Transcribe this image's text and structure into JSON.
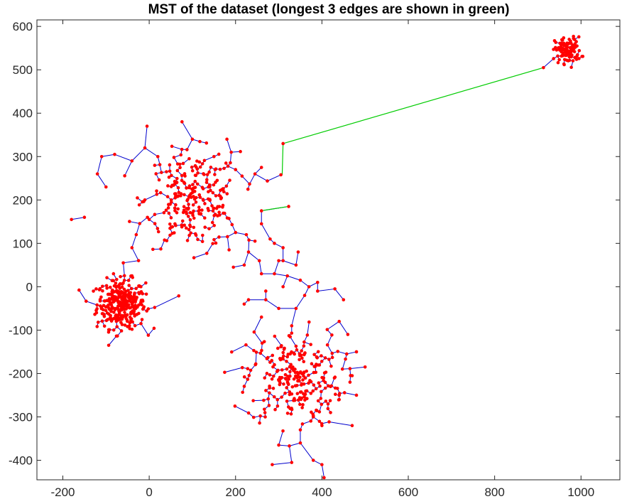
{
  "chart_data": {
    "type": "scatter",
    "title": "MST of the dataset (longest 3 edges are shown in green)",
    "xlabel": "",
    "ylabel": "",
    "xlim": [
      -260,
      1090
    ],
    "ylim": [
      -445,
      615
    ],
    "xticks": [
      -200,
      0,
      200,
      400,
      600,
      800,
      1000
    ],
    "yticks": [
      -400,
      -300,
      -200,
      -100,
      0,
      100,
      200,
      300,
      400,
      500,
      600
    ],
    "grid": false,
    "legend": "none",
    "colors": {
      "points": "#ff0000",
      "mst_edges": "#0000cc",
      "longest_edges": "#00cc00",
      "axes": "#262626"
    },
    "clusters": [
      {
        "center": [
          -65,
          -40
        ],
        "spread": 28,
        "count": 330
      },
      {
        "center": [
          100,
          200
        ],
        "spread": 55,
        "count": 260
      },
      {
        "center": [
          335,
          -210
        ],
        "spread": 55,
        "count": 260
      },
      {
        "center": [
          970,
          545
        ],
        "spread": 15,
        "count": 110
      }
    ],
    "bridge_points": [
      [
        -40,
        90
      ],
      [
        -60,
        55
      ],
      [
        -30,
        120
      ],
      [
        0,
        155
      ],
      [
        -10,
        200
      ],
      [
        -100,
        230
      ],
      [
        -150,
        160
      ],
      [
        -180,
        155
      ],
      [
        -120,
        260
      ],
      [
        -110,
        300
      ],
      [
        -80,
        305
      ],
      [
        -40,
        290
      ],
      [
        -10,
        320
      ],
      [
        -5,
        370
      ],
      [
        20,
        300
      ],
      [
        40,
        265
      ],
      [
        100,
        340
      ],
      [
        150,
        300
      ],
      [
        180,
        340
      ],
      [
        190,
        310
      ],
      [
        200,
        270
      ],
      [
        215,
        255
      ],
      [
        245,
        260
      ],
      [
        260,
        275
      ],
      [
        305,
        258
      ],
      [
        310,
        330
      ],
      [
        260,
        175
      ],
      [
        260,
        145
      ],
      [
        245,
        105
      ],
      [
        230,
        80
      ],
      [
        225,
        120
      ],
      [
        200,
        125
      ],
      [
        185,
        85
      ],
      [
        195,
        45
      ],
      [
        220,
        50
      ],
      [
        255,
        60
      ],
      [
        260,
        30
      ],
      [
        290,
        30
      ],
      [
        310,
        60
      ],
      [
        340,
        50
      ],
      [
        345,
        80
      ],
      [
        310,
        90
      ],
      [
        290,
        100
      ],
      [
        280,
        110
      ],
      [
        300,
        60
      ],
      [
        310,
        0
      ],
      [
        320,
        25
      ],
      [
        350,
        15
      ],
      [
        370,
        0
      ],
      [
        390,
        10
      ],
      [
        360,
        -20
      ],
      [
        340,
        -50
      ],
      [
        330,
        -90
      ],
      [
        300,
        -50
      ],
      [
        270,
        -30
      ],
      [
        270,
        -10
      ],
      [
        230,
        -30
      ],
      [
        260,
        -70
      ],
      [
        220,
        -40
      ],
      [
        390,
        -10
      ],
      [
        430,
        -5
      ],
      [
        450,
        -30
      ],
      [
        440,
        -80
      ],
      [
        460,
        -110
      ],
      [
        480,
        -150
      ],
      [
        500,
        -185
      ],
      [
        470,
        -205
      ],
      [
        440,
        -250
      ],
      [
        420,
        -230
      ],
      [
        420,
        -290
      ],
      [
        400,
        -320
      ],
      [
        380,
        -300
      ],
      [
        350,
        -330
      ],
      [
        350,
        -360
      ],
      [
        300,
        -365
      ],
      [
        285,
        -410
      ],
      [
        330,
        -405
      ],
      [
        380,
        -400
      ],
      [
        400,
        -410
      ],
      [
        405,
        -440
      ],
      [
        470,
        -320
      ],
      [
        440,
        -260
      ],
      [
        480,
        -250
      ],
      [
        465,
        -220
      ]
    ],
    "bridge_shift": [
      0,
      0
    ],
    "longest_edges": [
      [
        [
          308,
          258
        ],
        [
          310,
          330
        ]
      ],
      [
        [
          310,
          330
        ],
        [
          913,
          505
        ]
      ],
      [
        [
          258,
          175
        ],
        [
          323,
          185
        ]
      ]
    ]
  }
}
